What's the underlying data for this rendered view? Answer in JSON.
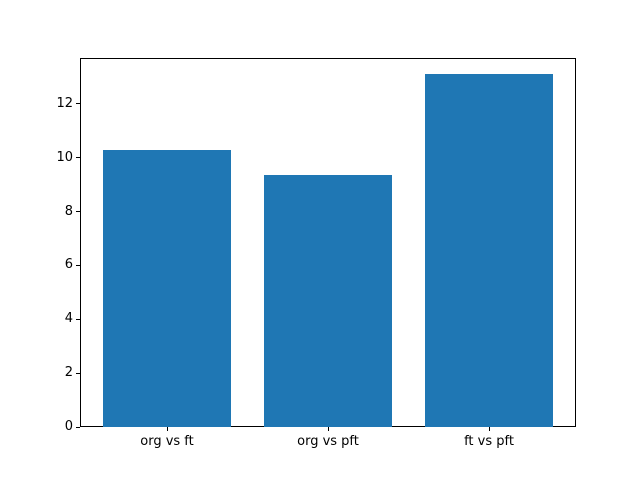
{
  "chart_data": {
    "type": "bar",
    "title": "",
    "xlabel": "",
    "ylabel": "",
    "categories": [
      "org vs ft",
      "org vs pft",
      "ft vs pft"
    ],
    "values": [
      10.27,
      9.34,
      13.09
    ],
    "yticks": [
      0,
      2,
      4,
      6,
      8,
      10,
      12
    ],
    "ytick_labels": [
      "0",
      "2",
      "4",
      "6",
      "8",
      "10",
      "12"
    ],
    "ylim": [
      0,
      13.7
    ],
    "bar_width_fraction": 0.8,
    "grid": false,
    "legend": null,
    "colors": {
      "bar": "#1f77b4",
      "axis": "#000000",
      "background": "#ffffff",
      "tick_text": "#000000"
    }
  }
}
